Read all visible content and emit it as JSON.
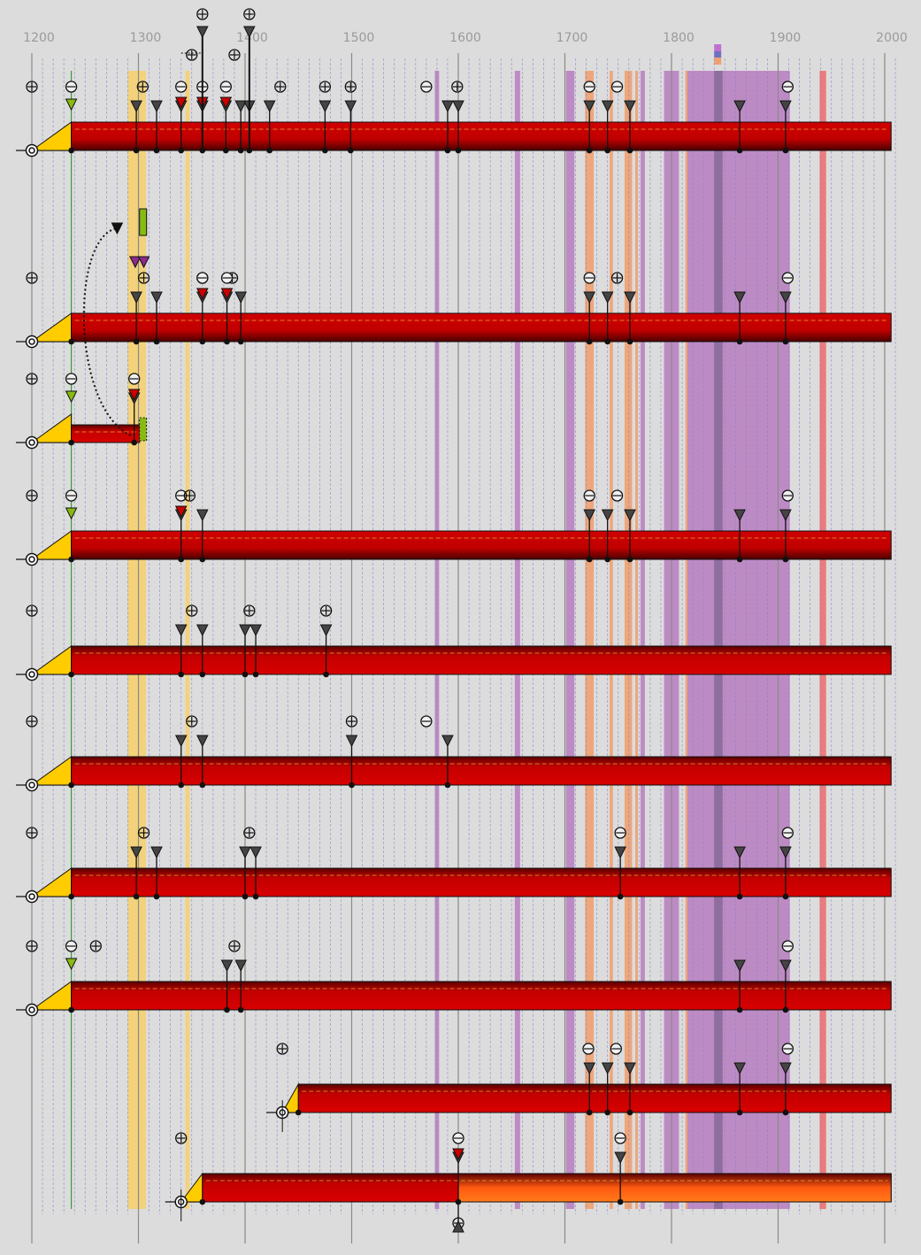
{
  "timeline": {
    "start_year": 1200,
    "end_year": 2000,
    "tick_years": [
      1200,
      1300,
      1400,
      1500,
      1600,
      1700,
      1800,
      1900,
      2000
    ]
  },
  "colors": {
    "background": "#dcdcdc",
    "bar_red": "#cc0000",
    "bar_dark": "#5a0000",
    "start_yellow": "#ffcc00",
    "orange_fill": "#ff7a1a",
    "green_marker": "#88bb11",
    "violet_band": "#b77cc0",
    "orange_band": "#f0a070",
    "pink_band": "#ef7070",
    "gold_band": "#f5d070",
    "minor_grid": "#7f7fd0"
  },
  "bands": [
    {
      "from": 1290,
      "to": 1307,
      "kind": "gold"
    },
    {
      "from": 1344,
      "to": 1348,
      "kind": "gold"
    },
    {
      "from": 1578,
      "to": 1582,
      "kind": "violet"
    },
    {
      "from": 1653,
      "to": 1658,
      "kind": "violet"
    },
    {
      "from": 1701,
      "to": 1709,
      "kind": "violet"
    },
    {
      "from": 1719,
      "to": 1727,
      "kind": "orange"
    },
    {
      "from": 1742,
      "to": 1745,
      "kind": "orange"
    },
    {
      "from": 1756,
      "to": 1763,
      "kind": "orange"
    },
    {
      "from": 1766,
      "to": 1768,
      "kind": "orange"
    },
    {
      "from": 1771,
      "to": 1775,
      "kind": "violet"
    },
    {
      "from": 1793,
      "to": 1807,
      "kind": "violet"
    },
    {
      "from": 1813,
      "to": 1815,
      "kind": "orange"
    },
    {
      "from": 1815,
      "to": 1911,
      "kind": "violet"
    },
    {
      "from": 1840,
      "to": 1848,
      "kind": "violetdark"
    },
    {
      "from": 1939,
      "to": 1945,
      "kind": "pink"
    }
  ],
  "rows": [
    {
      "origin": 1200,
      "start": 1237,
      "end": 2006,
      "symbols": [
        {
          "year": 1200,
          "s": "plus"
        },
        {
          "year": 1237,
          "s": "minus"
        },
        {
          "year": 1304,
          "s": "plus"
        },
        {
          "year": 1340,
          "s": "minus"
        },
        {
          "year": 1360,
          "s": "minus"
        },
        {
          "year": 1382,
          "s": "minus"
        },
        {
          "year": 1433,
          "s": "plus"
        },
        {
          "year": 1475,
          "s": "plus"
        },
        {
          "year": 1499,
          "s": "plus"
        },
        {
          "year": 1570,
          "s": "minus"
        },
        {
          "year": 1599,
          "s": "plus"
        },
        {
          "year": 1723,
          "s": "minus"
        },
        {
          "year": 1749,
          "s": "minus"
        },
        {
          "year": 1909,
          "s": "minus"
        }
      ],
      "pins": [
        1298,
        1317,
        1340,
        1360,
        1382,
        1396,
        1404,
        1423,
        1475,
        1499,
        1590,
        1600,
        1723,
        1740,
        1761,
        1864,
        1907
      ]
    },
    {
      "origin": 1200,
      "start": 1237,
      "end": 2006,
      "symbols": [
        {
          "year": 1200,
          "s": "plus"
        },
        {
          "year": 1305,
          "s": "plus"
        },
        {
          "year": 1360,
          "s": "plus"
        },
        {
          "year": 1388,
          "s": "plus"
        },
        {
          "year": 1360,
          "s": "minus"
        },
        {
          "year": 1383,
          "s": "minus"
        },
        {
          "year": 1723,
          "s": "minus"
        },
        {
          "year": 1749,
          "s": "plus"
        },
        {
          "year": 1909,
          "s": "minus"
        }
      ],
      "pins": [
        1298,
        1317,
        1360,
        1383,
        1396,
        1723,
        1740,
        1761,
        1864,
        1907
      ]
    },
    {
      "origin": 1200,
      "start": 1237,
      "end": 1301,
      "symbols": [
        {
          "year": 1200,
          "s": "plus"
        },
        {
          "year": 1237,
          "s": "minus"
        },
        {
          "year": 1296,
          "s": "minus"
        }
      ],
      "pins": [
        1296
      ]
    },
    {
      "origin": 1200,
      "start": 1237,
      "end": 2006,
      "symbols": [
        {
          "year": 1200,
          "s": "plus"
        },
        {
          "year": 1237,
          "s": "minus"
        },
        {
          "year": 1340,
          "s": "minus"
        },
        {
          "year": 1348,
          "s": "plus"
        },
        {
          "year": 1723,
          "s": "minus"
        },
        {
          "year": 1749,
          "s": "minus"
        },
        {
          "year": 1909,
          "s": "minus"
        }
      ],
      "pins": [
        1340,
        1360,
        1723,
        1740,
        1761,
        1864,
        1907
      ]
    },
    {
      "origin": 1200,
      "start": 1237,
      "end": 2006,
      "symbols": [
        {
          "year": 1200,
          "s": "plus"
        },
        {
          "year": 1350,
          "s": "plus"
        },
        {
          "year": 1404,
          "s": "plus"
        },
        {
          "year": 1476,
          "s": "plus"
        }
      ],
      "pins": [
        1340,
        1360,
        1400,
        1410,
        1476
      ]
    },
    {
      "origin": 1200,
      "start": 1237,
      "end": 2006,
      "symbols": [
        {
          "year": 1200,
          "s": "plus"
        },
        {
          "year": 1350,
          "s": "plus"
        },
        {
          "year": 1500,
          "s": "plus"
        },
        {
          "year": 1570,
          "s": "minus"
        }
      ],
      "pins": [
        1340,
        1360,
        1500,
        1590
      ]
    },
    {
      "origin": 1200,
      "start": 1237,
      "end": 2006,
      "symbols": [
        {
          "year": 1200,
          "s": "plus"
        },
        {
          "year": 1305,
          "s": "plus"
        },
        {
          "year": 1404,
          "s": "plus"
        },
        {
          "year": 1752,
          "s": "minus"
        },
        {
          "year": 1909,
          "s": "minus"
        }
      ],
      "pins": [
        1298,
        1317,
        1400,
        1410,
        1752,
        1864,
        1907
      ]
    },
    {
      "origin": 1200,
      "start": 1237,
      "end": 2006,
      "symbols": [
        {
          "year": 1200,
          "s": "plus"
        },
        {
          "year": 1237,
          "s": "minus"
        },
        {
          "year": 1260,
          "s": "plus"
        },
        {
          "year": 1390,
          "s": "plus"
        },
        {
          "year": 1909,
          "s": "minus"
        }
      ],
      "pins": [
        1383,
        1396,
        1864,
        1907
      ]
    },
    {
      "origin": 1435,
      "start": 1450,
      "end": 2006,
      "symbols": [
        {
          "year": 1435,
          "s": "plus"
        },
        {
          "year": 1722,
          "s": "minus"
        },
        {
          "year": 1748,
          "s": "minus"
        },
        {
          "year": 1909,
          "s": "minus"
        }
      ],
      "pins": [
        1723,
        1740,
        1761,
        1864,
        1907
      ]
    },
    {
      "origin": 1340,
      "start": 1360,
      "end": 2006,
      "symbols": [
        {
          "year": 1340,
          "s": "plus"
        },
        {
          "year": 1600,
          "s": "minus"
        },
        {
          "year": 1752,
          "s": "minus"
        }
      ],
      "pins": [
        1600,
        1752
      ]
    }
  ]
}
